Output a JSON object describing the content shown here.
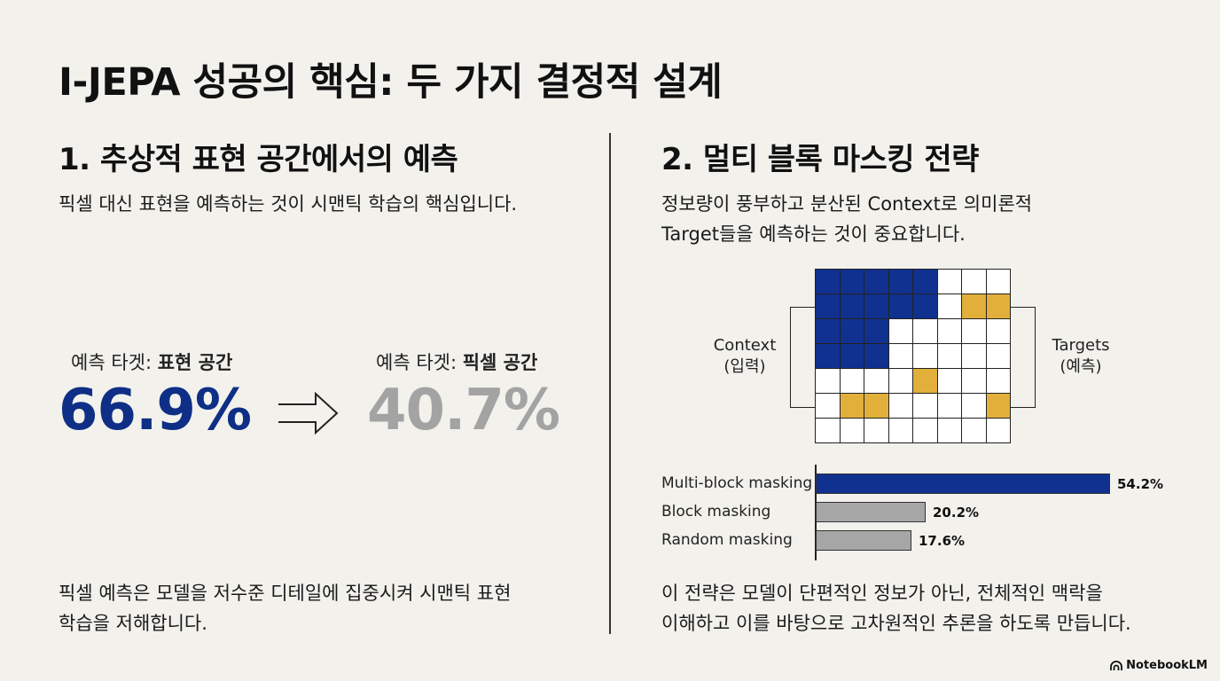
{
  "title": "I-JEPA 성공의 핵심: 두 가지 결정적 설계",
  "left": {
    "heading": "1. 추상적 표현 공간에서의 예측",
    "subtitle": "픽셀 대신 표현을 예측하는 것이 시맨틱 학습의 핵심입니다.",
    "stat_repr": {
      "label_prefix": "예측 타겟: ",
      "label_bold": "표현 공간",
      "value": "66.9%",
      "color": "#0f2f86"
    },
    "stat_pixel": {
      "label_prefix": "예측 타겟: ",
      "label_bold": "픽셀 공간",
      "value": "40.7%",
      "color": "#a3a3a3"
    },
    "footer_line1": "픽셀 예측은 모델을 저수준 디테일에 집중시켜 시맨틱 표현",
    "footer_line2": "학습을 저해합니다."
  },
  "right": {
    "heading": "2. 멀티 블록 마스킹 전략",
    "subtitle_line1": "정보량이 풍부하고 분산된 Context로 의미론적",
    "subtitle_line2": "Target들을 예측하는 것이 중요합니다.",
    "context_label_line1": "Context",
    "context_label_line2": "(입력)",
    "targets_label_line1": "Targets",
    "targets_label_line2": "(예측)",
    "grid_rows": [
      "CCCCC...",
      "CCCCC.TT",
      "CCC.....",
      "CCC.....",
      "....T...",
      ".TT....T",
      "........"
    ],
    "colors": {
      "context": "#10318f",
      "target": "#e2b03a",
      "bar_other": "#a6a6a6"
    },
    "chart_data": {
      "type": "bar",
      "orientation": "horizontal",
      "categories": [
        "Multi-block masking",
        "Block masking",
        "Random masking"
      ],
      "values": [
        54.2,
        20.2,
        17.6
      ],
      "value_labels": [
        "54.2%",
        "20.2%",
        "17.6%"
      ],
      "xlim": [
        0,
        54.2
      ]
    },
    "footer_line1": "이 전략은 모델이 단편적인 정보가 아닌, 전체적인 맥락을",
    "footer_line2": "이해하고 이를 바탕으로 고차원적인 추론을 하도록 만듭니다."
  },
  "brand": "NotebookLM"
}
